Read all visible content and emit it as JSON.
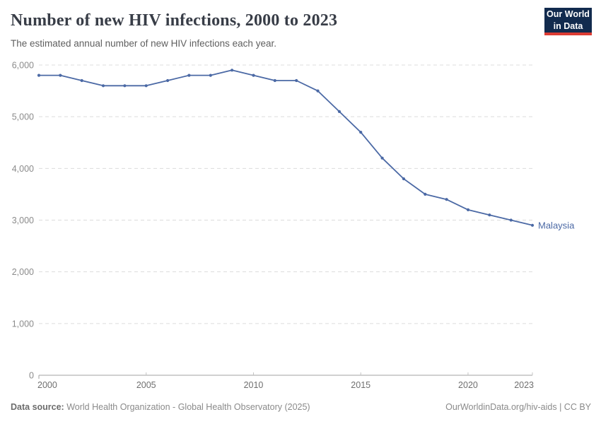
{
  "logo": {
    "line1": "Our World",
    "line2": "in Data",
    "bg_color": "#122b4e",
    "accent_color": "#dc3c33"
  },
  "chart_data": {
    "type": "line",
    "title": "Number of new HIV infections, 2000 to 2023",
    "subtitle": "The estimated annual number of new HIV infections each year.",
    "x": [
      2000,
      2001,
      2002,
      2003,
      2004,
      2005,
      2006,
      2007,
      2008,
      2009,
      2010,
      2011,
      2012,
      2013,
      2014,
      2015,
      2016,
      2017,
      2018,
      2019,
      2020,
      2021,
      2022,
      2023
    ],
    "series": [
      {
        "name": "Malaysia",
        "color": "#4b69a5",
        "values": [
          5800,
          5800,
          5700,
          5600,
          5600,
          5600,
          5700,
          5800,
          5800,
          5900,
          5800,
          5700,
          5700,
          5500,
          5100,
          4700,
          4200,
          3800,
          3500,
          3400,
          3200,
          3100,
          3000,
          2900
        ]
      }
    ],
    "ylim": [
      0,
      6000
    ],
    "yticks": [
      0,
      1000,
      2000,
      3000,
      4000,
      5000,
      6000
    ],
    "xticks": [
      2000,
      2005,
      2010,
      2015,
      2020,
      2023
    ],
    "grid": true,
    "legend_position": "end-of-line",
    "colors": {
      "gridline": "#dcdcdc",
      "axis": "#a1a1a1",
      "tick": "#c3c3c3",
      "y_label": "#8b8b8b",
      "x_label": "#6f6f6f"
    }
  },
  "footer": {
    "source_label": "Data source:",
    "source_text": "World Health Organization - Global Health Observatory (2025)",
    "right_text": "OurWorldinData.org/hiv-aids | CC BY"
  }
}
